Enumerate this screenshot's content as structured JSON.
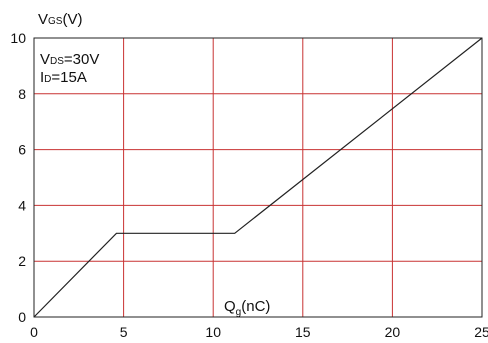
{
  "chart_data": {
    "type": "line",
    "ylabel_main": "V",
    "ylabel_sub": "GS",
    "ylabel_unit": "(V)",
    "xlabel_main": "Q",
    "xlabel_sub": "g",
    "xlabel_unit": "(nC)",
    "annotation_vds_main": "V",
    "annotation_vds_sub": "DS",
    "annotation_vds_value": "=30V",
    "annotation_id_main": "I",
    "annotation_id_sub": "D",
    "annotation_id_value": "=15A",
    "xlim": [
      0,
      25
    ],
    "ylim": [
      0,
      10
    ],
    "x_ticks": [
      0,
      5,
      10,
      15,
      20,
      25
    ],
    "y_ticks": [
      0,
      2,
      4,
      6,
      8,
      10
    ],
    "grid": true,
    "colors": {
      "grid": "#c83232",
      "line": "#222222",
      "frame": "#222222"
    },
    "series": [
      {
        "points": [
          [
            0,
            0
          ],
          [
            4.6,
            3.0
          ],
          [
            11.2,
            3.0
          ],
          [
            25,
            10
          ]
        ]
      }
    ]
  }
}
